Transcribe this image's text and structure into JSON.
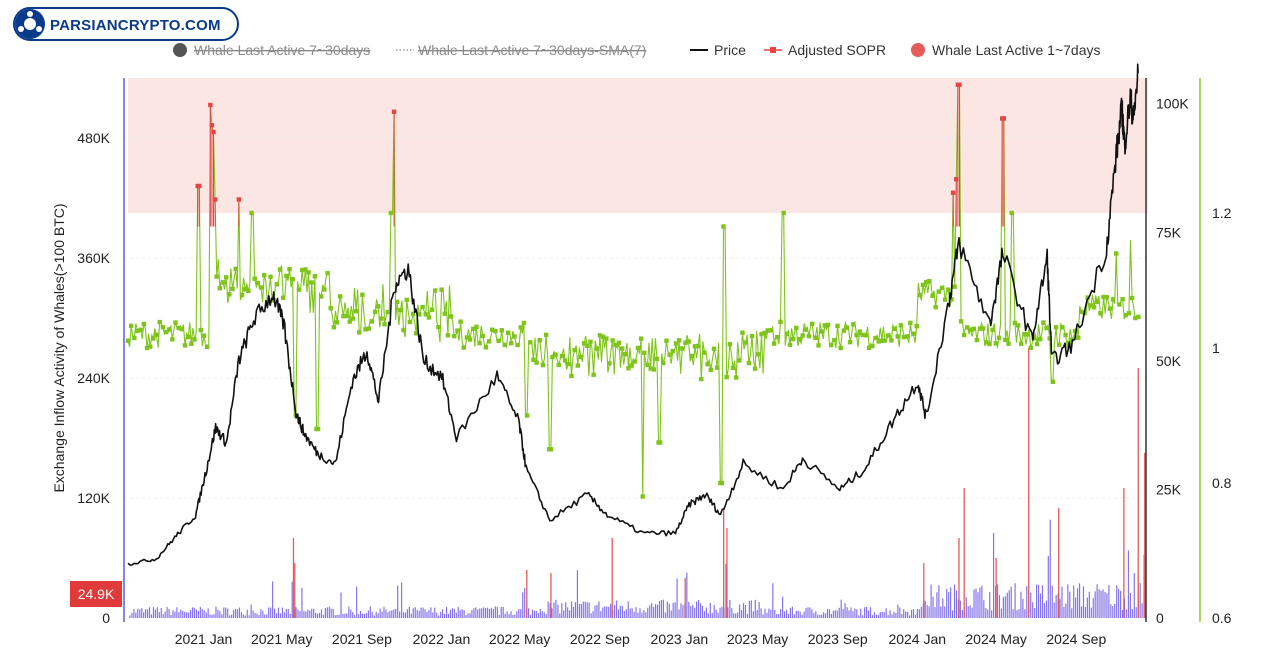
{
  "branding": {
    "logo_text": "PARSIANCRYPTO.COM"
  },
  "chart_data": {
    "type": "line",
    "title": "",
    "ylabel": "Exchange Inflow Activity of Whales(>100 BTC)",
    "legend_position": "top",
    "legend": [
      {
        "label": "Whale Last Active 7~30days",
        "marker": "dot",
        "color": "#555555",
        "struck": true
      },
      {
        "label": "Whale Last Active 7~30days-SMA(7)",
        "marker": "dotted-line",
        "color": "#9a9a9a",
        "struck": true
      },
      {
        "label": "Price",
        "marker": "line",
        "color": "#111111",
        "struck": false
      },
      {
        "label": "Adjusted SOPR",
        "marker": "square-line",
        "color": "#e64545",
        "struck": false
      },
      {
        "label": "Whale Last Active 1~7days",
        "marker": "dot",
        "color": "#e65a5a",
        "struck": false
      }
    ],
    "x_ticks": [
      "2021 Jan",
      "2021 May",
      "2021 Sep",
      "2022 Jan",
      "2022 May",
      "2022 Sep",
      "2023 Jan",
      "2023 May",
      "2023 Sep",
      "2024 Jan",
      "2024 May",
      "2024 Sep"
    ],
    "left_axis": {
      "ticks": [
        "0",
        "120K",
        "240K",
        "360K",
        "480K"
      ],
      "ylim": [
        0,
        540000
      ],
      "current_value_label": "24.9K"
    },
    "price_axis": {
      "ticks": [
        "0",
        "25K",
        "50K",
        "75K",
        "100K"
      ],
      "ylim": [
        0,
        105000
      ]
    },
    "sopr_axis": {
      "ticks": [
        "0.6",
        "0.8",
        "1",
        "1.2"
      ],
      "ylim": [
        0.6,
        1.4
      ],
      "highlight_band": [
        1.2,
        1.4
      ]
    },
    "price_series": {
      "name": "Price",
      "color": "#111111",
      "points": [
        [
          "2020-09-01",
          10500
        ],
        [
          "2020-10-15",
          11500
        ],
        [
          "2020-11-15",
          16000
        ],
        [
          "2020-12-15",
          20000
        ],
        [
          "2021-01-01",
          29000
        ],
        [
          "2021-01-15",
          37000
        ],
        [
          "2021-02-01",
          34000
        ],
        [
          "2021-02-20",
          50000
        ],
        [
          "2021-03-15",
          58000
        ],
        [
          "2021-04-14",
          63000
        ],
        [
          "2021-05-01",
          57000
        ],
        [
          "2021-05-20",
          40000
        ],
        [
          "2021-06-01",
          36000
        ],
        [
          "2021-06-22",
          32000
        ],
        [
          "2021-07-20",
          30000
        ],
        [
          "2021-08-15",
          46000
        ],
        [
          "2021-09-07",
          52000
        ],
        [
          "2021-09-25",
          42000
        ],
        [
          "2021-10-20",
          65000
        ],
        [
          "2021-11-10",
          68000
        ],
        [
          "2021-12-04",
          50000
        ],
        [
          "2022-01-01",
          47000
        ],
        [
          "2022-01-24",
          35000
        ],
        [
          "2022-03-28",
          47000
        ],
        [
          "2022-05-01",
          38000
        ],
        [
          "2022-05-12",
          29000
        ],
        [
          "2022-06-18",
          19000
        ],
        [
          "2022-08-15",
          24000
        ],
        [
          "2022-09-15",
          20000
        ],
        [
          "2022-11-09",
          16500
        ],
        [
          "2022-12-30",
          16500
        ],
        [
          "2023-01-20",
          22000
        ],
        [
          "2023-02-15",
          24000
        ],
        [
          "2023-03-10",
          20000
        ],
        [
          "2023-04-14",
          30000
        ],
        [
          "2023-06-15",
          25000
        ],
        [
          "2023-07-15",
          31000
        ],
        [
          "2023-09-11",
          25000
        ],
        [
          "2023-10-20",
          29000
        ],
        [
          "2023-12-01",
          38000
        ],
        [
          "2024-01-10",
          46000
        ],
        [
          "2024-01-23",
          39000
        ],
        [
          "2024-02-28",
          62000
        ],
        [
          "2024-03-14",
          73000
        ],
        [
          "2024-05-01",
          57000
        ],
        [
          "2024-05-21",
          71000
        ],
        [
          "2024-07-05",
          54000
        ],
        [
          "2024-07-29",
          70000
        ],
        [
          "2024-08-05",
          50000
        ],
        [
          "2024-09-06",
          53000
        ],
        [
          "2024-10-29",
          72000
        ],
        [
          "2024-11-13",
          90000
        ],
        [
          "2024-11-22",
          99000
        ],
        [
          "2024-11-26",
          92000
        ],
        [
          "2024-12-05",
          101000
        ],
        [
          "2024-12-10",
          97000
        ],
        [
          "2024-12-17",
          106000
        ]
      ]
    },
    "sopr_series": {
      "name": "Adjusted SOPR",
      "color": "#7fc41b",
      "highlight_color": "#e64545",
      "baseline": 1.0,
      "spikes": [
        [
          "2020-12-20",
          1.24
        ],
        [
          "2021-01-08",
          1.36
        ],
        [
          "2021-01-10",
          1.33
        ],
        [
          "2021-01-12",
          1.32
        ],
        [
          "2021-01-14",
          1.22
        ],
        [
          "2021-02-20",
          1.22
        ],
        [
          "2021-03-13",
          1.2
        ],
        [
          "2021-05-19",
          0.9
        ],
        [
          "2021-06-22",
          0.88
        ],
        [
          "2021-10-18",
          1.35
        ],
        [
          "2021-10-15",
          1.2
        ],
        [
          "2022-05-12",
          0.9
        ],
        [
          "2022-06-18",
          0.85
        ],
        [
          "2022-11-09",
          0.78
        ],
        [
          "2022-12-05",
          0.86
        ],
        [
          "2023-03-10",
          0.8
        ],
        [
          "2023-03-15",
          1.18
        ],
        [
          "2023-06-15",
          1.2
        ],
        [
          "2024-03-05",
          1.23
        ],
        [
          "2024-03-12",
          1.25
        ],
        [
          "2024-03-14",
          1.39
        ],
        [
          "2024-05-21",
          1.34
        ],
        [
          "2024-06-05",
          1.2
        ],
        [
          "2024-08-05",
          0.95
        ],
        [
          "2024-11-13",
          1.14
        ],
        [
          "2024-12-05",
          1.16
        ]
      ]
    },
    "inflow_bars": {
      "name": "Whale Last Active 1~7days",
      "color": "#6f5ce6",
      "highlight_color": "#e65a5a",
      "peaks": [
        [
          "2021-05-19",
          80000
        ],
        [
          "2021-05-21",
          55000
        ],
        [
          "2022-05-12",
          48000
        ],
        [
          "2022-06-18",
          45000
        ],
        [
          "2022-09-20",
          80000
        ],
        [
          "2023-01-10",
          40000
        ],
        [
          "2023-03-10",
          110000
        ],
        [
          "2023-03-15",
          90000
        ],
        [
          "2024-01-11",
          55000
        ],
        [
          "2024-03-05",
          80000
        ],
        [
          "2024-03-13",
          130000
        ],
        [
          "2024-05-01",
          60000
        ],
        [
          "2024-06-20",
          270000
        ],
        [
          "2024-08-05",
          110000
        ],
        [
          "2024-11-13",
          130000
        ],
        [
          "2024-12-05",
          250000
        ],
        [
          "2024-12-15",
          165000
        ]
      ]
    }
  }
}
